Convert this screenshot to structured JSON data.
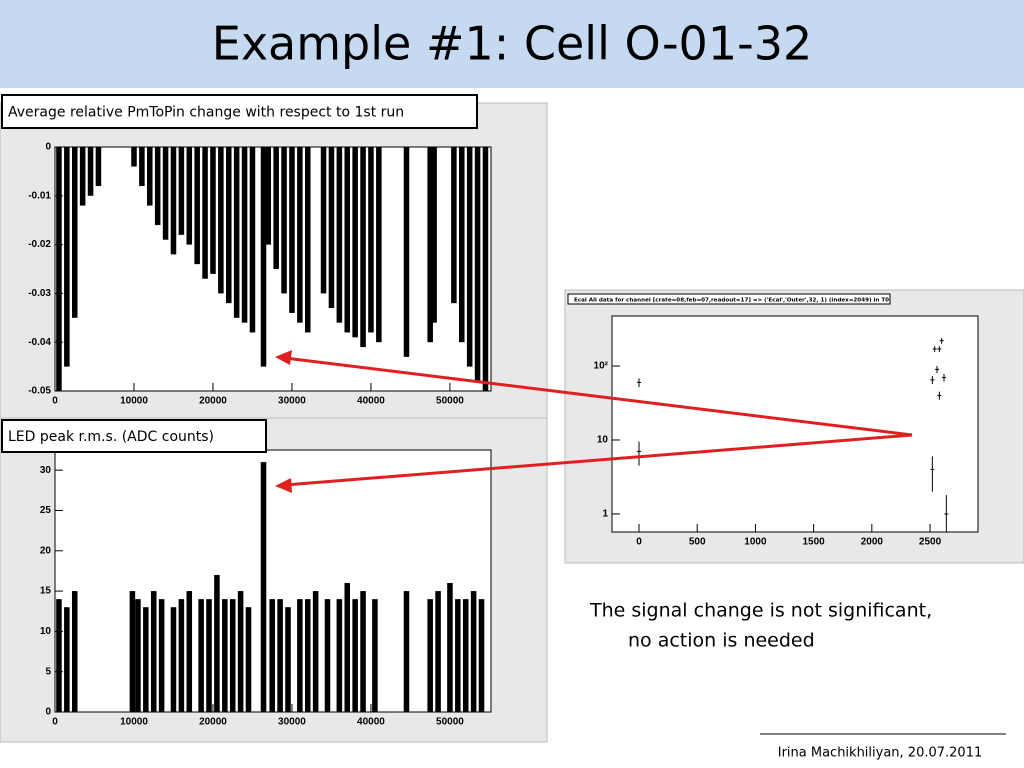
{
  "header": {
    "title": "Example #1: Cell O-01-32"
  },
  "chart_data": [
    {
      "type": "bar",
      "title": "Average relative PmToPin change with respect to 1st run",
      "x": [
        500,
        1500,
        2500,
        3500,
        4500,
        5500,
        10000,
        11000,
        12000,
        13000,
        14000,
        15000,
        16000,
        17000,
        18000,
        19000,
        20000,
        21000,
        22000,
        23000,
        24000,
        25000,
        26400,
        27000,
        28000,
        29000,
        30000,
        31000,
        32000,
        34000,
        35000,
        36000,
        37000,
        38000,
        39000,
        40000,
        41000,
        44500,
        47500,
        48000,
        50500,
        51500,
        52500,
        53500,
        54500
      ],
      "values": [
        -0.05,
        -0.045,
        -0.035,
        -0.012,
        -0.01,
        -0.008,
        -0.004,
        -0.008,
        -0.012,
        -0.016,
        -0.019,
        -0.022,
        -0.018,
        -0.02,
        -0.024,
        -0.027,
        -0.026,
        -0.03,
        -0.032,
        -0.035,
        -0.036,
        -0.038,
        -0.045,
        -0.02,
        -0.025,
        -0.03,
        -0.034,
        -0.036,
        -0.038,
        -0.03,
        -0.033,
        -0.036,
        -0.038,
        -0.039,
        -0.041,
        -0.038,
        -0.04,
        -0.043,
        -0.04,
        -0.036,
        -0.032,
        -0.04,
        -0.045,
        -0.048,
        -0.05
      ],
      "color": "#000000",
      "xlim": [
        0,
        55200
      ],
      "ylim": [
        -0.05,
        0
      ],
      "xticks": [
        0,
        10000,
        20000,
        30000,
        40000,
        50000
      ],
      "yticks": [
        0,
        -0.01,
        -0.02,
        -0.03,
        -0.04,
        -0.05
      ]
    },
    {
      "type": "bar",
      "title": "LED peak r.m.s. (ADC counts)",
      "x": [
        500,
        1500,
        2500,
        9800,
        10500,
        11500,
        12500,
        13500,
        15000,
        16000,
        17000,
        18500,
        19500,
        20500,
        21500,
        22500,
        23500,
        24500,
        26400,
        27500,
        28500,
        29500,
        31000,
        32000,
        33000,
        34500,
        36000,
        37000,
        38000,
        39000,
        40500,
        44500,
        47500,
        48500,
        50000,
        51000,
        52000,
        53000,
        54000
      ],
      "values": [
        14,
        13,
        15,
        15,
        14,
        13,
        15,
        14,
        13,
        14,
        15,
        14,
        14,
        17,
        14,
        14,
        15,
        13,
        31,
        14,
        14,
        13,
        14,
        14,
        15,
        14,
        14,
        16,
        14,
        15,
        14,
        15,
        14,
        15,
        16,
        14,
        14,
        15,
        14
      ],
      "color": "#000000",
      "xlim": [
        0,
        55200
      ],
      "ylim": [
        0,
        32.5
      ],
      "xticks": [
        0,
        10000,
        20000,
        30000,
        40000,
        50000
      ],
      "yticks": [
        0,
        5,
        10,
        15,
        20,
        25,
        30
      ]
    },
    {
      "type": "scatter",
      "title": "Ecal All data  for channel  [crate=08,feb=07,readout=17] => ('Ecal','Outer',32, 1) (index=2049) in T0",
      "x": [
        0,
        0,
        2520,
        2640,
        2540,
        2580,
        2600,
        2560,
        2520,
        2620,
        2580
      ],
      "values": [
        60,
        7,
        4,
        1,
        170,
        170,
        220,
        90,
        65,
        70,
        40
      ],
      "errors": [
        8,
        2.5,
        2,
        0.8,
        15,
        15,
        20,
        10,
        8,
        8,
        5
      ],
      "color": "#000000",
      "log_y": true,
      "xlim": [
        -232,
        2912
      ],
      "ylim": [
        0.57,
        474
      ],
      "xticks": [
        0,
        500,
        1000,
        1500,
        2000,
        2500
      ],
      "yticks": [
        1,
        10,
        {
          "value": 100,
          "label": "10²"
        }
      ]
    }
  ],
  "text": {
    "conclusion": [
      "The signal change is not significant,",
      "no action is needed"
    ],
    "footer": "Irina Machikhiliyan, 20.07.2011"
  }
}
